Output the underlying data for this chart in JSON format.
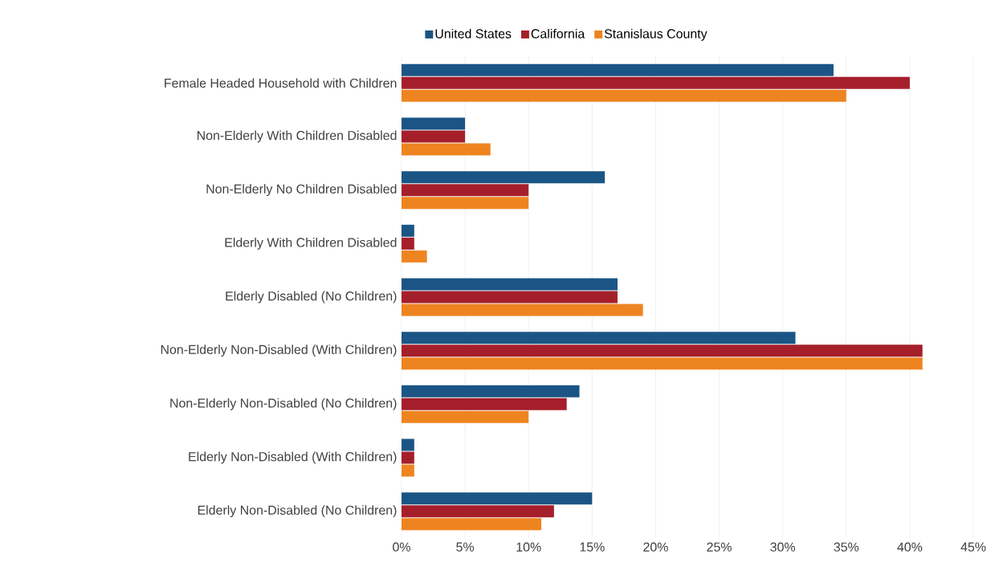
{
  "chart_data": {
    "type": "bar",
    "orientation": "horizontal",
    "categories": [
      "Female Headed Household with Children",
      "Non-Elderly With Children Disabled",
      "Non-Elderly No Children Disabled",
      "Elderly With Children Disabled",
      "Elderly Disabled (No Children)",
      "Non-Elderly Non-Disabled (With Children)",
      "Non-Elderly Non-Disabled (No Children)",
      "Elderly Non-Disabled (With Children)",
      "Elderly Non-Disabled (No Children)"
    ],
    "series": [
      {
        "name": "United States",
        "color": "#1b5585",
        "values": [
          34,
          5,
          16,
          1,
          17,
          31,
          14,
          1,
          15
        ]
      },
      {
        "name": "California",
        "color": "#a51f2b",
        "values": [
          40,
          5,
          10,
          1,
          17,
          41,
          13,
          1,
          12
        ]
      },
      {
        "name": "Stanislaus County",
        "color": "#ee8420",
        "values": [
          35,
          7,
          10,
          2,
          19,
          41,
          10,
          1,
          11
        ]
      }
    ],
    "xlim": [
      0,
      45
    ],
    "xticks": [
      {
        "value": 0,
        "label": "0%"
      },
      {
        "value": 5,
        "label": "5%"
      },
      {
        "value": 10,
        "label": "10%"
      },
      {
        "value": 15,
        "label": "15%"
      },
      {
        "value": 20,
        "label": "20%"
      },
      {
        "value": 25,
        "label": "25%"
      },
      {
        "value": 30,
        "label": "30%"
      },
      {
        "value": 35,
        "label": "35%"
      },
      {
        "value": 40,
        "label": "40%"
      },
      {
        "value": 45,
        "label": "45%"
      }
    ],
    "grid": "x",
    "legend": "top"
  }
}
